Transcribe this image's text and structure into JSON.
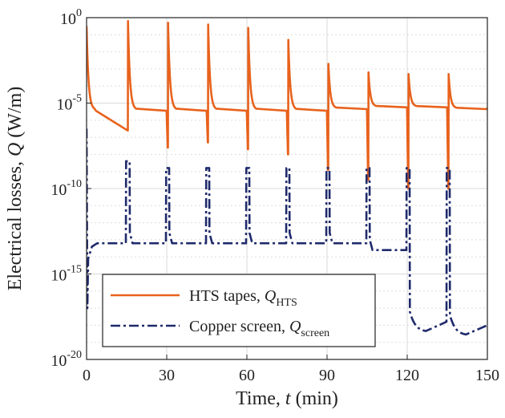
{
  "chart_data": {
    "type": "line",
    "x_scale": "linear",
    "y_scale": "log",
    "xlim": [
      0,
      150
    ],
    "ylim_exponent": [
      -20,
      0
    ],
    "xticks": [
      "0",
      "30",
      "60",
      "90",
      "120",
      "150"
    ],
    "yticks": [
      {
        "base": "10",
        "exp": "-20"
      },
      {
        "base": "10",
        "exp": "-15"
      },
      {
        "base": "10",
        "exp": "-10"
      },
      {
        "base": "10",
        "exp": "-5"
      },
      {
        "base": "10",
        "exp": "0"
      }
    ],
    "grid": true,
    "legend_position": "bottom-left",
    "xlabel": {
      "text": "Time, ",
      "var": "t",
      "unit": " (min)"
    },
    "ylabel": {
      "text": "Electrical losses, ",
      "var": "Q",
      "unit": " (W/m)"
    },
    "series": [
      {
        "name": "HTS tapes, Q_HTS",
        "legend_text": "HTS tapes, ",
        "legend_var": "Q",
        "legend_sub": "HTS",
        "color": "#e8621c",
        "dash": "solid",
        "spike_times_min": [
          0,
          15.5,
          30.5,
          45.5,
          60.5,
          75.5,
          90.5,
          105.5,
          120.5,
          135.5
        ],
        "peak_log10": [
          -0.5,
          -0.2,
          -0.3,
          -0.4,
          -0.6,
          -1.3,
          -2.7,
          -3.2,
          -3.3,
          -3.3
        ],
        "pre_spike_min_log10": [
          -5.0,
          -6.6,
          -7.6,
          -7.3,
          -7.7,
          -8.0,
          -8.9,
          -9.5,
          -10.0,
          -10.0
        ],
        "plateau_log10": [
          -5.4,
          -5.4,
          -5.4,
          -5.4,
          -5.4,
          -5.4,
          -5.3,
          -5.2,
          -5.2,
          -5.3
        ],
        "end_value_log10": -5.3
      },
      {
        "name": "Copper screen, Q_screen",
        "legend_text": "Copper screen, ",
        "legend_var": "Q",
        "legend_sub": "screen",
        "color": "#1f2a6b",
        "dash": "dash-dot",
        "initial_peak_log10": -6.5,
        "initial_min_log10": -17.0,
        "pulse_windows_min": [
          [
            14.8,
            16.2
          ],
          [
            29.8,
            31.0
          ],
          [
            44.8,
            46.0
          ],
          [
            59.8,
            61.0
          ],
          [
            74.8,
            76.0
          ],
          [
            89.8,
            91.0
          ],
          [
            104.8,
            106.0
          ],
          [
            119.8,
            121.0
          ],
          [
            134.8,
            136.0
          ]
        ],
        "pulse_level_log10": -8.8,
        "first_pulse_peak_log10": -8.4,
        "baseline_log10": [
          -13.2,
          -13.2,
          -13.2,
          -13.2,
          -13.2,
          -13.2,
          -13.2,
          -13.6,
          -17.8,
          -18.0
        ],
        "end_value_log10": -18.0
      }
    ]
  }
}
